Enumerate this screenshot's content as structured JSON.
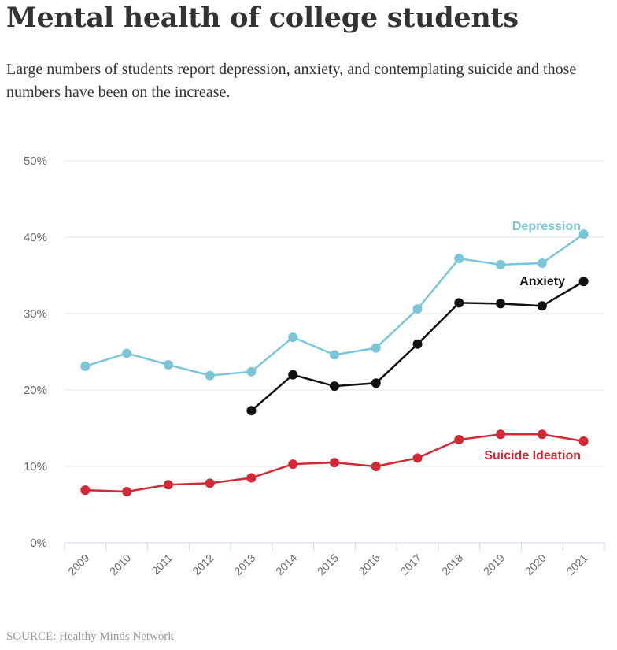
{
  "title": "Mental health of college students",
  "subtitle": "Large numbers of students report depression, anxiety, and contemplating suicide and those numbers have been on the increase.",
  "source": {
    "label": "SOURCE:",
    "link_text": "Healthy Minds Network"
  },
  "chart_data": {
    "type": "line",
    "x": [
      "2009",
      "2010",
      "2011",
      "2012",
      "2013",
      "2014",
      "2015",
      "2016",
      "2017",
      "2018",
      "2019",
      "2020",
      "2021"
    ],
    "ylim": [
      0,
      50
    ],
    "yticks": [
      0,
      10,
      20,
      30,
      40,
      50
    ],
    "ytick_labels": [
      "0%",
      "10%",
      "20%",
      "30%",
      "40%",
      "50%"
    ],
    "grid": true,
    "series": [
      {
        "name": "Depression",
        "color": "#7cc4d8",
        "values": [
          23.1,
          24.8,
          23.3,
          21.9,
          22.4,
          26.9,
          24.6,
          25.5,
          30.6,
          37.2,
          36.4,
          36.6,
          40.4
        ]
      },
      {
        "name": "Anxiety",
        "color": "#111111",
        "values": [
          null,
          null,
          null,
          null,
          17.3,
          22.0,
          20.5,
          20.9,
          26.0,
          31.4,
          31.3,
          31.0,
          34.2
        ]
      },
      {
        "name": "Suicide Ideation",
        "color": "#d12a36",
        "values": [
          6.9,
          6.7,
          7.6,
          7.8,
          8.5,
          10.3,
          10.5,
          10.0,
          11.1,
          13.5,
          14.2,
          14.2,
          13.3
        ]
      }
    ]
  }
}
